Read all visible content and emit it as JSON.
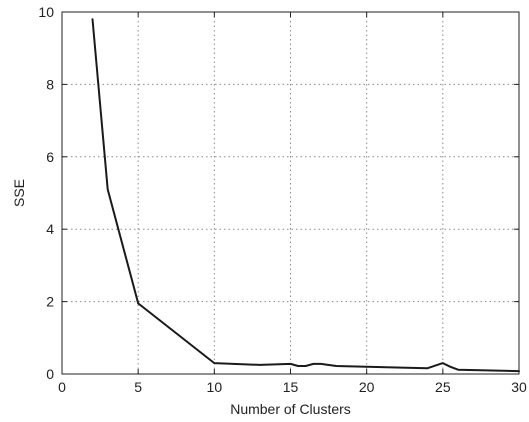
{
  "chart_data": {
    "type": "line",
    "title": "",
    "xlabel": "Number of Clusters",
    "ylabel": "SSE",
    "xlim": [
      0,
      30
    ],
    "ylim": [
      0,
      10
    ],
    "x_ticks": [
      0,
      5,
      10,
      15,
      20,
      25,
      30
    ],
    "y_ticks": [
      0,
      2,
      4,
      6,
      8,
      10
    ],
    "x_tick_labels": [
      "0",
      "5",
      "10",
      "15",
      "20",
      "25",
      "30"
    ],
    "y_tick_labels": [
      "0",
      "2",
      "4",
      "6",
      "8",
      "10"
    ],
    "grid": true,
    "legend": "none",
    "line_color": "#1a1a1a",
    "series": [
      {
        "x": [
          2,
          3,
          5,
          10,
          13,
          15,
          15.5,
          16,
          16.5,
          17,
          18,
          24,
          25,
          25.5,
          26,
          30
        ],
        "y": [
          9.8,
          5.1,
          1.95,
          0.3,
          0.25,
          0.28,
          0.22,
          0.22,
          0.28,
          0.28,
          0.22,
          0.16,
          0.3,
          0.2,
          0.12,
          0.08
        ]
      }
    ]
  }
}
